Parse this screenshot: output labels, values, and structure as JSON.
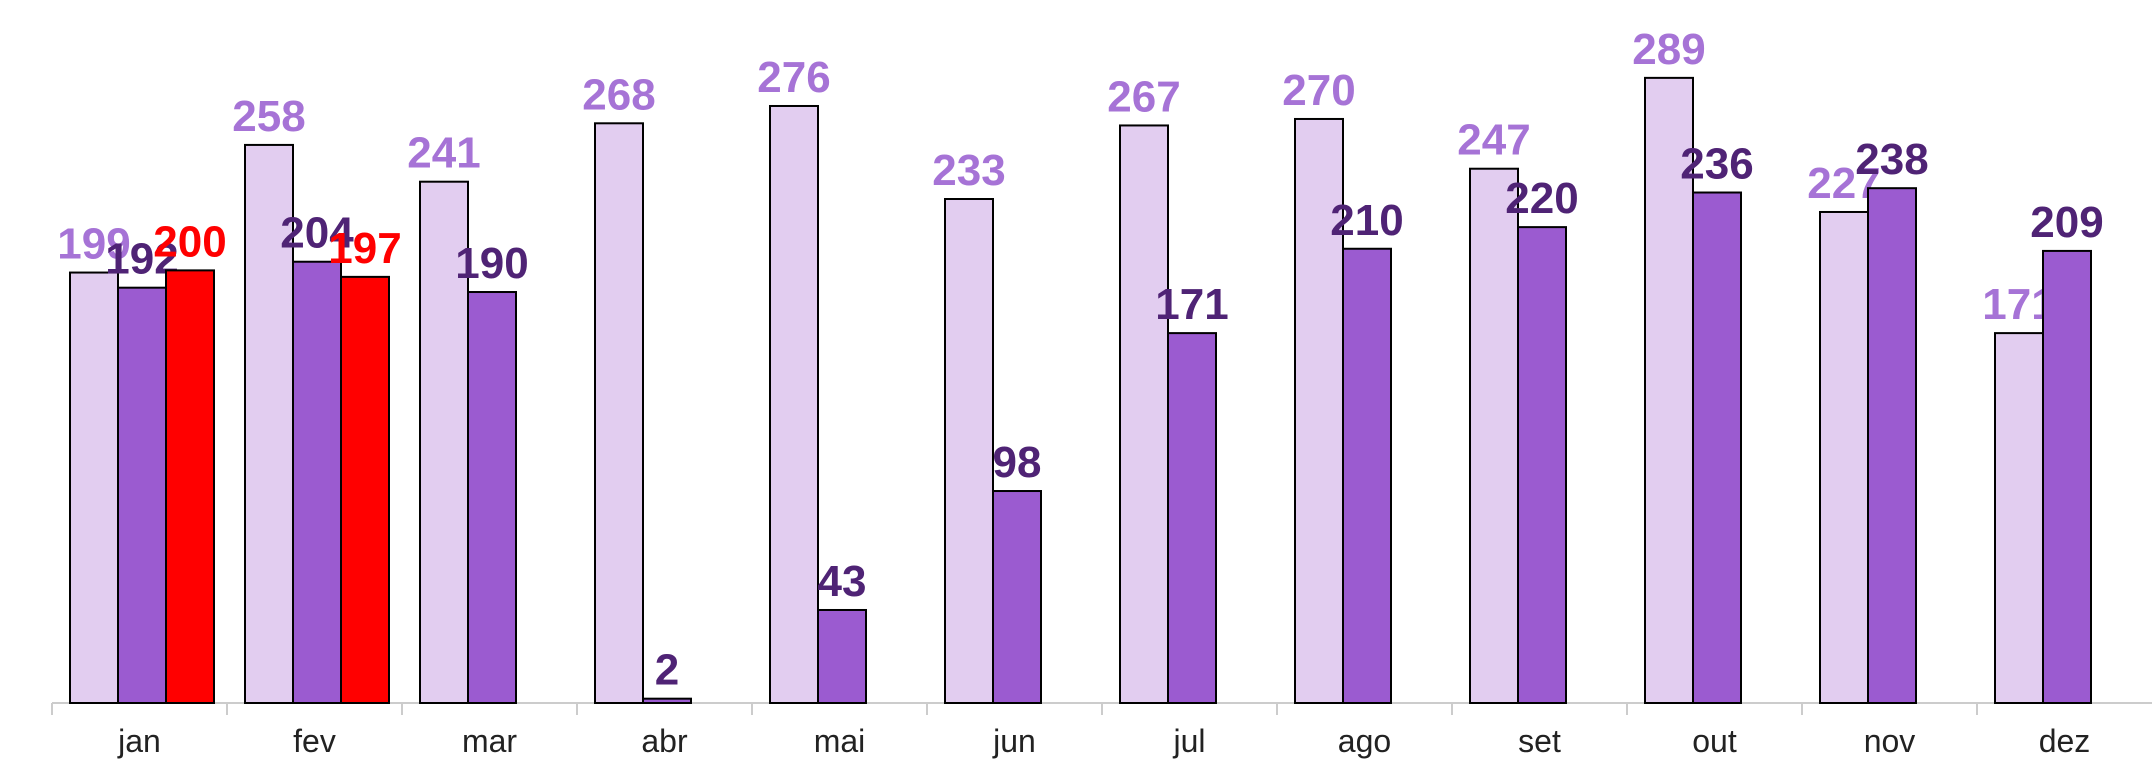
{
  "chart_data": {
    "type": "bar",
    "categories": [
      "jan",
      "fev",
      "mar",
      "abr",
      "mai",
      "jun",
      "jul",
      "ago",
      "set",
      "out",
      "nov",
      "dez"
    ],
    "series": [
      {
        "color": "#e2cdf0",
        "label_color": "#a673d6",
        "values": [
          199,
          258,
          241,
          268,
          276,
          233,
          267,
          270,
          247,
          289,
          227,
          171
        ]
      },
      {
        "color": "#9b5bd0",
        "label_color": "#4f2375",
        "values": [
          192,
          204,
          190,
          2,
          43,
          98,
          171,
          210,
          220,
          236,
          238,
          209
        ]
      },
      {
        "color": "#ff0000",
        "label_color": "#ff0000",
        "values": [
          200,
          197,
          null,
          null,
          null,
          null,
          null,
          null,
          null,
          null,
          null,
          null
        ]
      }
    ],
    "ylim": [
      0,
      325
    ],
    "grid": false
  }
}
